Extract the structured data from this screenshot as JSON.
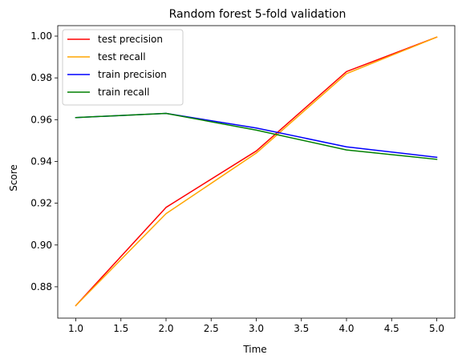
{
  "chart_data": {
    "type": "line",
    "title": "Random forest 5-fold validation",
    "xlabel": "Time",
    "ylabel": "Score",
    "xlim": [
      0.8,
      5.2
    ],
    "ylim": [
      0.865,
      1.005
    ],
    "x": [
      1,
      2,
      3,
      4,
      5
    ],
    "xticks": [
      1.0,
      1.5,
      2.0,
      2.5,
      3.0,
      3.5,
      4.0,
      4.5,
      5.0
    ],
    "xtick_labels": [
      "1.0",
      "1.5",
      "2.0",
      "2.5",
      "3.0",
      "3.5",
      "4.0",
      "4.5",
      "5.0"
    ],
    "yticks": [
      0.88,
      0.9,
      0.92,
      0.94,
      0.96,
      0.98,
      1.0
    ],
    "ytick_labels": [
      "0.88",
      "0.90",
      "0.92",
      "0.94",
      "0.96",
      "0.98",
      "1.00"
    ],
    "grid": false,
    "legend_position": "top-left",
    "series": [
      {
        "name": "test precision",
        "color": "#ff0000",
        "values": [
          0.871,
          0.918,
          0.945,
          0.983,
          0.9995
        ]
      },
      {
        "name": "test recall",
        "color": "#ffa500",
        "values": [
          0.871,
          0.915,
          0.944,
          0.982,
          0.9995
        ]
      },
      {
        "name": "train precision",
        "color": "#0000ff",
        "values": [
          0.961,
          0.963,
          0.956,
          0.947,
          0.942
        ]
      },
      {
        "name": "train recall",
        "color": "#008000",
        "values": [
          0.961,
          0.963,
          0.955,
          0.9455,
          0.941
        ]
      }
    ]
  }
}
